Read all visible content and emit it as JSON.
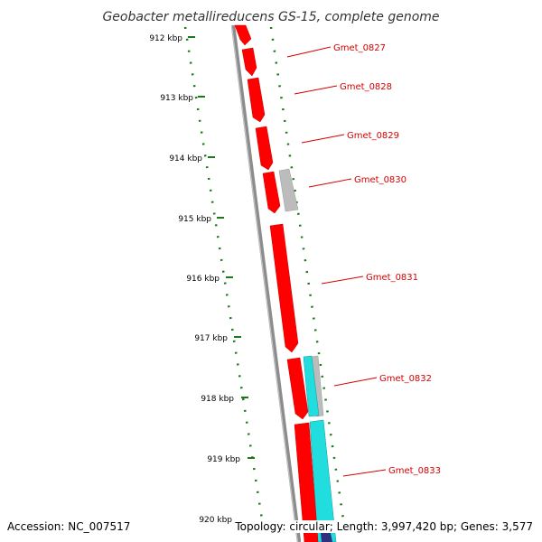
{
  "title": "Geobacter metallireducens GS-15, complete genome",
  "kbp_labels": [
    "912 kbp",
    "913 kbp",
    "914 kbp",
    "915 kbp",
    "916 kbp",
    "917 kbp",
    "918 kbp",
    "919 kbp",
    "920 kbp"
  ],
  "genes": [
    {
      "label": "Gmet_0827",
      "color": "#ff0000",
      "strand": "forward"
    },
    {
      "label": "Gmet_0828",
      "color": "#ff0000",
      "strand": "forward"
    },
    {
      "label": "Gmet_0829",
      "color": "#ff0000",
      "strand": "forward"
    },
    {
      "label": "Gmet_0830",
      "color": "#ff0000",
      "strand": "forward"
    },
    {
      "label": "Gmet_0831",
      "color": "#ff0000",
      "strand": "forward"
    },
    {
      "label": "Gmet_0832",
      "color": "#ff0000",
      "strand": "forward"
    },
    {
      "label": "Gmet_0833",
      "color": "#ff0000",
      "strand": "forward"
    }
  ],
  "colors": {
    "tick": "#1a7a1a",
    "backbone": "#777777",
    "cds": "#ff0000",
    "gray_feature": "#bbbbbb",
    "cyan_feature": "#22dddd",
    "label": "#d40000"
  },
  "footer": {
    "accession": "Accession: NC_007517",
    "stats": "Topology: circular; Length: 3,997,420 bp; Genes: 3,577"
  }
}
